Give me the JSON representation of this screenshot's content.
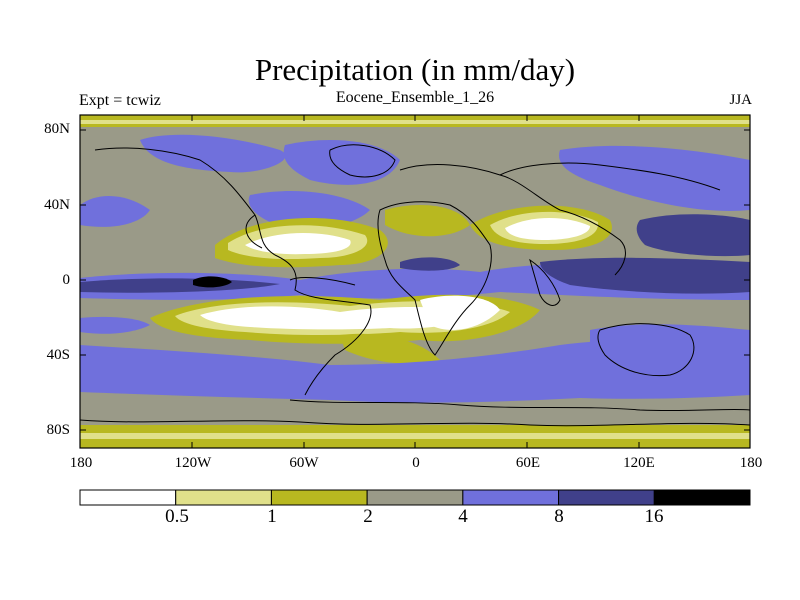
{
  "title": "Precipitation (in mm/day)",
  "experiment_label": "Expt = tcwiz",
  "ensemble_label": "Eocene_Ensemble_1_26",
  "season_label": "JJA",
  "map": {
    "variable": "precipitation",
    "units": "mm/day",
    "projection": "cylindrical equidistant",
    "lat_ticks": [
      "80N",
      "40N",
      "0",
      "40S",
      "80S"
    ],
    "lon_ticks": [
      "180",
      "120W",
      "60W",
      "0",
      "60E",
      "120E",
      "180"
    ]
  },
  "colorbar": {
    "levels": [
      "0.5",
      "1",
      "2",
      "4",
      "8",
      "16"
    ],
    "colors": [
      "#ffffff",
      "#e0e08a",
      "#b8b820",
      "#9a9a88",
      "#7070dc",
      "#40408a",
      "#000000"
    ]
  }
}
